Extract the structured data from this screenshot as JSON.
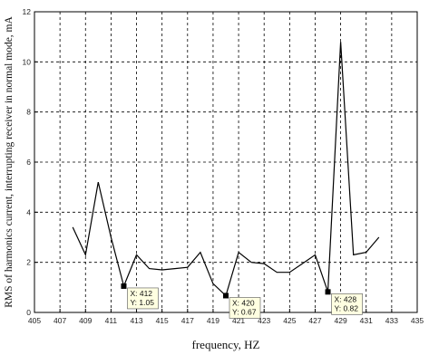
{
  "chart_data": {
    "type": "line",
    "title": "",
    "xlabel": "frequency, HZ",
    "ylabel": "RMS of harmonics current, interrupting receiver in normal mode, mA",
    "xlim": [
      405,
      435
    ],
    "ylim": [
      0,
      12
    ],
    "xticks": [
      405,
      407,
      409,
      411,
      413,
      415,
      417,
      419,
      421,
      423,
      425,
      427,
      429,
      431,
      433,
      435
    ],
    "yticks": [
      0,
      2,
      4,
      6,
      8,
      10,
      12
    ],
    "grid": true,
    "series": [
      {
        "x": [
          408,
          409,
          410,
          411,
          412,
          413,
          414,
          415,
          416,
          417,
          418,
          419,
          420,
          421,
          422,
          423,
          424,
          425,
          426,
          427,
          428,
          429,
          430,
          431,
          432
        ],
        "y": [
          3.4,
          2.3,
          5.2,
          3.0,
          1.05,
          2.3,
          1.75,
          1.7,
          1.75,
          1.8,
          2.4,
          1.15,
          0.67,
          2.4,
          2.0,
          1.95,
          1.6,
          1.6,
          1.95,
          2.3,
          0.82,
          10.8,
          2.3,
          2.4,
          3.0
        ]
      }
    ],
    "annotations": [
      {
        "x": 412,
        "y": 1.05,
        "text_x": "X: 412",
        "text_y": "Y: 1.05"
      },
      {
        "x": 420,
        "y": 0.67,
        "text_x": "X: 420",
        "text_y": "Y: 0.67"
      },
      {
        "x": 428,
        "y": 0.82,
        "text_x": "X: 428",
        "text_y": "Y: 0.82"
      }
    ]
  }
}
